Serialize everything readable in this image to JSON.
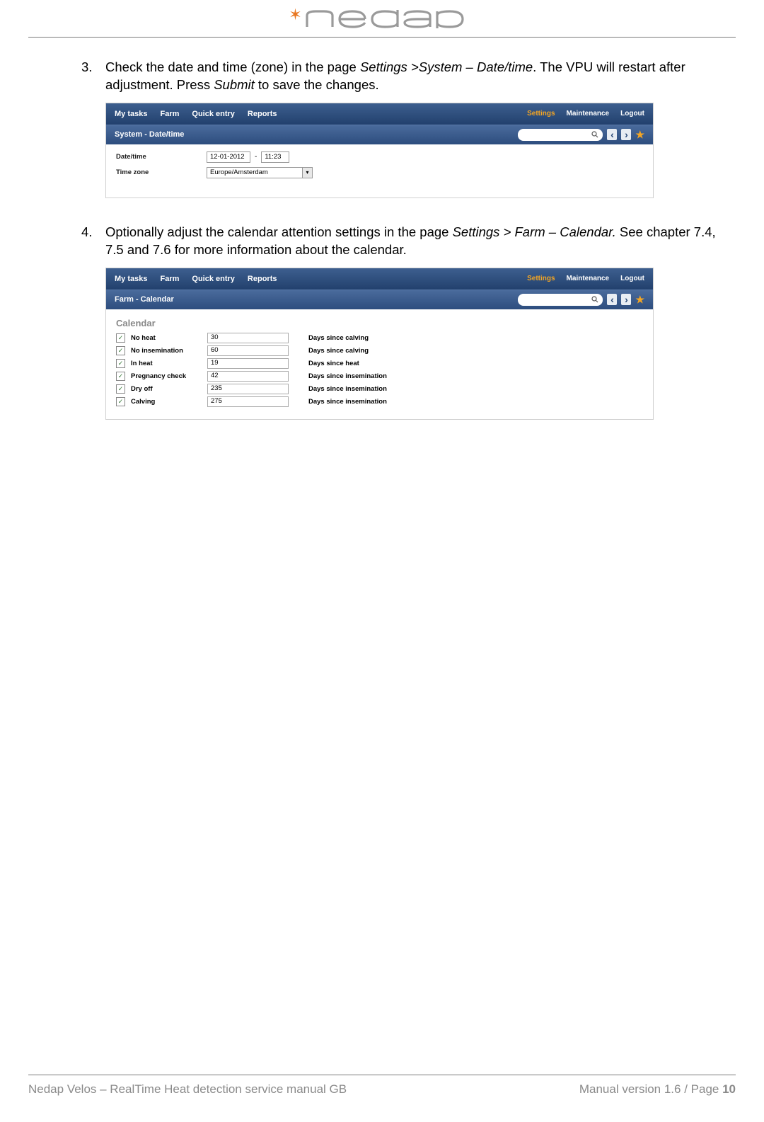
{
  "logo": {
    "brand": "nedap"
  },
  "items": [
    {
      "num": "3.",
      "text_a": "Check the date and time (zone) in the page ",
      "path": "Settings >System – Date/time",
      "text_b": ". The VPU will restart after adjustment. Press ",
      "action": "Submit",
      "text_c": " to save the changes."
    },
    {
      "num": "4.",
      "text_a": "Optionally adjust the calendar attention settings in the page ",
      "path": "Settings > Farm – Calendar.",
      "text_b": " See chapter 7.4, 7.5 and 7.6 for more information about the calendar."
    }
  ],
  "nav": {
    "left": [
      "My tasks",
      "Farm",
      "Quick entry",
      "Reports"
    ],
    "right": [
      "Settings",
      "Maintenance",
      "Logout"
    ]
  },
  "screenshot1": {
    "title": "System - Date/time",
    "rows": {
      "datetime_label": "Date/time",
      "date_value": "12-01-2012",
      "sep": "-",
      "time_value": "11:23",
      "tz_label": "Time zone",
      "tz_value": "Europe/Amsterdam"
    }
  },
  "screenshot2": {
    "title": "Farm - Calendar",
    "heading": "Calendar",
    "rows": [
      {
        "label": "No heat",
        "value": "30",
        "desc": "Days since calving"
      },
      {
        "label": "No insemination",
        "value": "60",
        "desc": "Days since calving"
      },
      {
        "label": "In heat",
        "value": "19",
        "desc": "Days since heat"
      },
      {
        "label": "Pregnancy check",
        "value": "42",
        "desc": "Days since insemination"
      },
      {
        "label": "Dry off",
        "value": "235",
        "desc": "Days since insemination"
      },
      {
        "label": "Calving",
        "value": "275",
        "desc": "Days since insemination"
      }
    ]
  },
  "footer": {
    "left": "Nedap Velos – RealTime Heat detection service manual GB",
    "right_a": "Manual version 1.6 / Page ",
    "right_b": "10"
  },
  "colors": {
    "accent": "#e87722",
    "nav_active": "#f5a623",
    "grey_logo": "#9a9a9a",
    "footer_grey": "#8a8a8a"
  }
}
